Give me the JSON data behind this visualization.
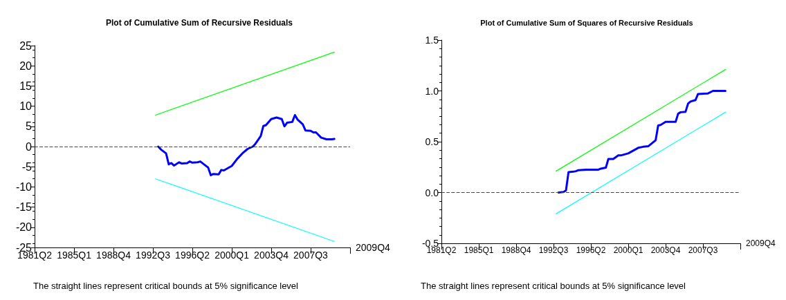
{
  "chart_data": [
    {
      "type": "line",
      "title": "Plot of Cumulative Sum of Recursive Residuals",
      "xlabel": "2009Q4",
      "annotations": [
        "The straight lines represent critical bounds at 5% significance level"
      ],
      "xlim": [
        "1981-04",
        "2011-04"
      ],
      "xticks": [
        {
          "value": "1981-04",
          "label": "1981Q2"
        },
        {
          "value": "1985-01",
          "label": "1985Q1"
        },
        {
          "value": "1988-10",
          "label": "1988Q4"
        },
        {
          "value": "1992-07",
          "label": "1992Q3"
        },
        {
          "value": "1996-04",
          "label": "1996Q2"
        },
        {
          "value": "2000-01",
          "label": "2000Q1"
        },
        {
          "value": "2003-10",
          "label": "2003Q4"
        },
        {
          "value": "2007-07",
          "label": "2007Q3"
        },
        {
          "value": "2011-04",
          "label": null
        }
      ],
      "ylim": [
        -25,
        25
      ],
      "yticks": [
        -25,
        -20,
        -15,
        -10,
        -5,
        0,
        5,
        10,
        15,
        20,
        25
      ],
      "series": [
        {
          "color": "#0000ff",
          "x": [
            "1993-01",
            "1993-04",
            "1993-10",
            "1994-01",
            "1994-04",
            "1994-07",
            "1995-01",
            "1995-04",
            "1995-10",
            "1996-01",
            "1996-04",
            "1996-10",
            "1997-01",
            "1997-10",
            "1998-01",
            "1998-04",
            "1998-10",
            "1999-01",
            "1999-04",
            "2000-01",
            "2000-07",
            "2001-01",
            "2001-07",
            "2002-01",
            "2002-04",
            "2002-10",
            "2003-01",
            "2003-04",
            "2003-10",
            "2004-04",
            "2004-10",
            "2005-01",
            "2005-04",
            "2005-10",
            "2006-01",
            "2006-04",
            "2006-10",
            "2007-01",
            "2007-07",
            "2007-10",
            "2008-01",
            "2008-07",
            "2009-01",
            "2009-07",
            "2009-10"
          ],
          "values": [
            0,
            -0.7,
            -1.7,
            -4.4,
            -4.1,
            -4.7,
            -3.9,
            -4.2,
            -4.1,
            -3.7,
            -4.0,
            -3.9,
            -3.7,
            -5.2,
            -7.1,
            -6.8,
            -6.9,
            -5.8,
            -5.9,
            -4.8,
            -3.1,
            -1.7,
            -0.6,
            0,
            0.7,
            2.6,
            5.1,
            5.3,
            6.8,
            7.2,
            6.8,
            5.0,
            5.9,
            6.1,
            7.8,
            6.7,
            5.5,
            4.0,
            3.9,
            3.5,
            3.5,
            2.2,
            1.8,
            1.8,
            1.9
          ]
        },
        {
          "color": "#00ff00",
          "x": [
            "1992-10",
            "2009-10"
          ],
          "values": [
            7.8,
            23.4
          ]
        },
        {
          "color": "#00ffff",
          "x": [
            "1992-10",
            "2009-10"
          ],
          "values": [
            -8.0,
            -23.5
          ]
        }
      ],
      "ref_lines": [
        {
          "axis": "y",
          "value": 0,
          "color": "#444444",
          "line_style": "dashed"
        }
      ],
      "grid": false,
      "marker": "none",
      "line_style": "solid"
    },
    {
      "type": "line",
      "title": "Plot of Cumulative Sum of Squares of Recursive Residuals",
      "xlabel": "2009Q4",
      "annotations": [
        "The straight lines represent critical bounds at 5% significance level"
      ],
      "xlim": [
        "1981-04",
        "2011-04"
      ],
      "xticks": [
        {
          "value": "1981-04",
          "label": "1981Q2"
        },
        {
          "value": "1985-01",
          "label": "1985Q1"
        },
        {
          "value": "1988-10",
          "label": "1988Q4"
        },
        {
          "value": "1992-07",
          "label": "1992Q3"
        },
        {
          "value": "1996-04",
          "label": "1996Q2"
        },
        {
          "value": "2000-01",
          "label": "2000Q1"
        },
        {
          "value": "2003-10",
          "label": "2003Q4"
        },
        {
          "value": "2007-07",
          "label": "2007Q3"
        },
        {
          "value": "2011-04",
          "label": null
        }
      ],
      "ylim": [
        -0.5,
        1.5
      ],
      "yticks": [
        -0.5,
        {
          "value": 0,
          "label": "0.0"
        },
        0.5,
        {
          "value": 1,
          "label": "1.0"
        },
        1.5
      ],
      "series": [
        {
          "color": "#0000ff",
          "x": [
            "1993-01",
            "1993-07",
            "1993-10",
            "1994-01",
            "1994-07",
            "1994-10",
            "1995-01",
            "1995-10",
            "1997-01",
            "1997-04",
            "1997-10",
            "1998-01",
            "1998-07",
            "1999-01",
            "1999-04",
            "2000-01",
            "2001-01",
            "2001-07",
            "2002-01",
            "2002-10",
            "2003-01",
            "2003-04",
            "2003-10",
            "2004-10",
            "2005-01",
            "2005-04",
            "2005-10",
            "2006-01",
            "2006-04",
            "2006-10",
            "2007-01",
            "2008-01",
            "2008-07",
            "2009-10"
          ],
          "values": [
            0,
            0.005,
            0.02,
            0.2,
            0.205,
            0.21,
            0.22,
            0.225,
            0.225,
            0.235,
            0.245,
            0.33,
            0.33,
            0.365,
            0.365,
            0.385,
            0.44,
            0.45,
            0.455,
            0.515,
            0.66,
            0.665,
            0.695,
            0.695,
            0.775,
            0.79,
            0.795,
            0.875,
            0.895,
            0.91,
            0.97,
            0.975,
            1.0,
            1.0
          ]
        },
        {
          "color": "#00ff00",
          "x": [
            "1992-10",
            "2009-10"
          ],
          "values": [
            0.21,
            1.21
          ]
        },
        {
          "color": "#00ffff",
          "x": [
            "1992-10",
            "2009-10"
          ],
          "values": [
            -0.21,
            0.79
          ]
        }
      ],
      "ref_lines": [
        {
          "axis": "y",
          "value": 0,
          "color": "#444444",
          "line_style": "dashed"
        }
      ],
      "grid": false,
      "marker": "none",
      "line_style": "solid"
    }
  ]
}
